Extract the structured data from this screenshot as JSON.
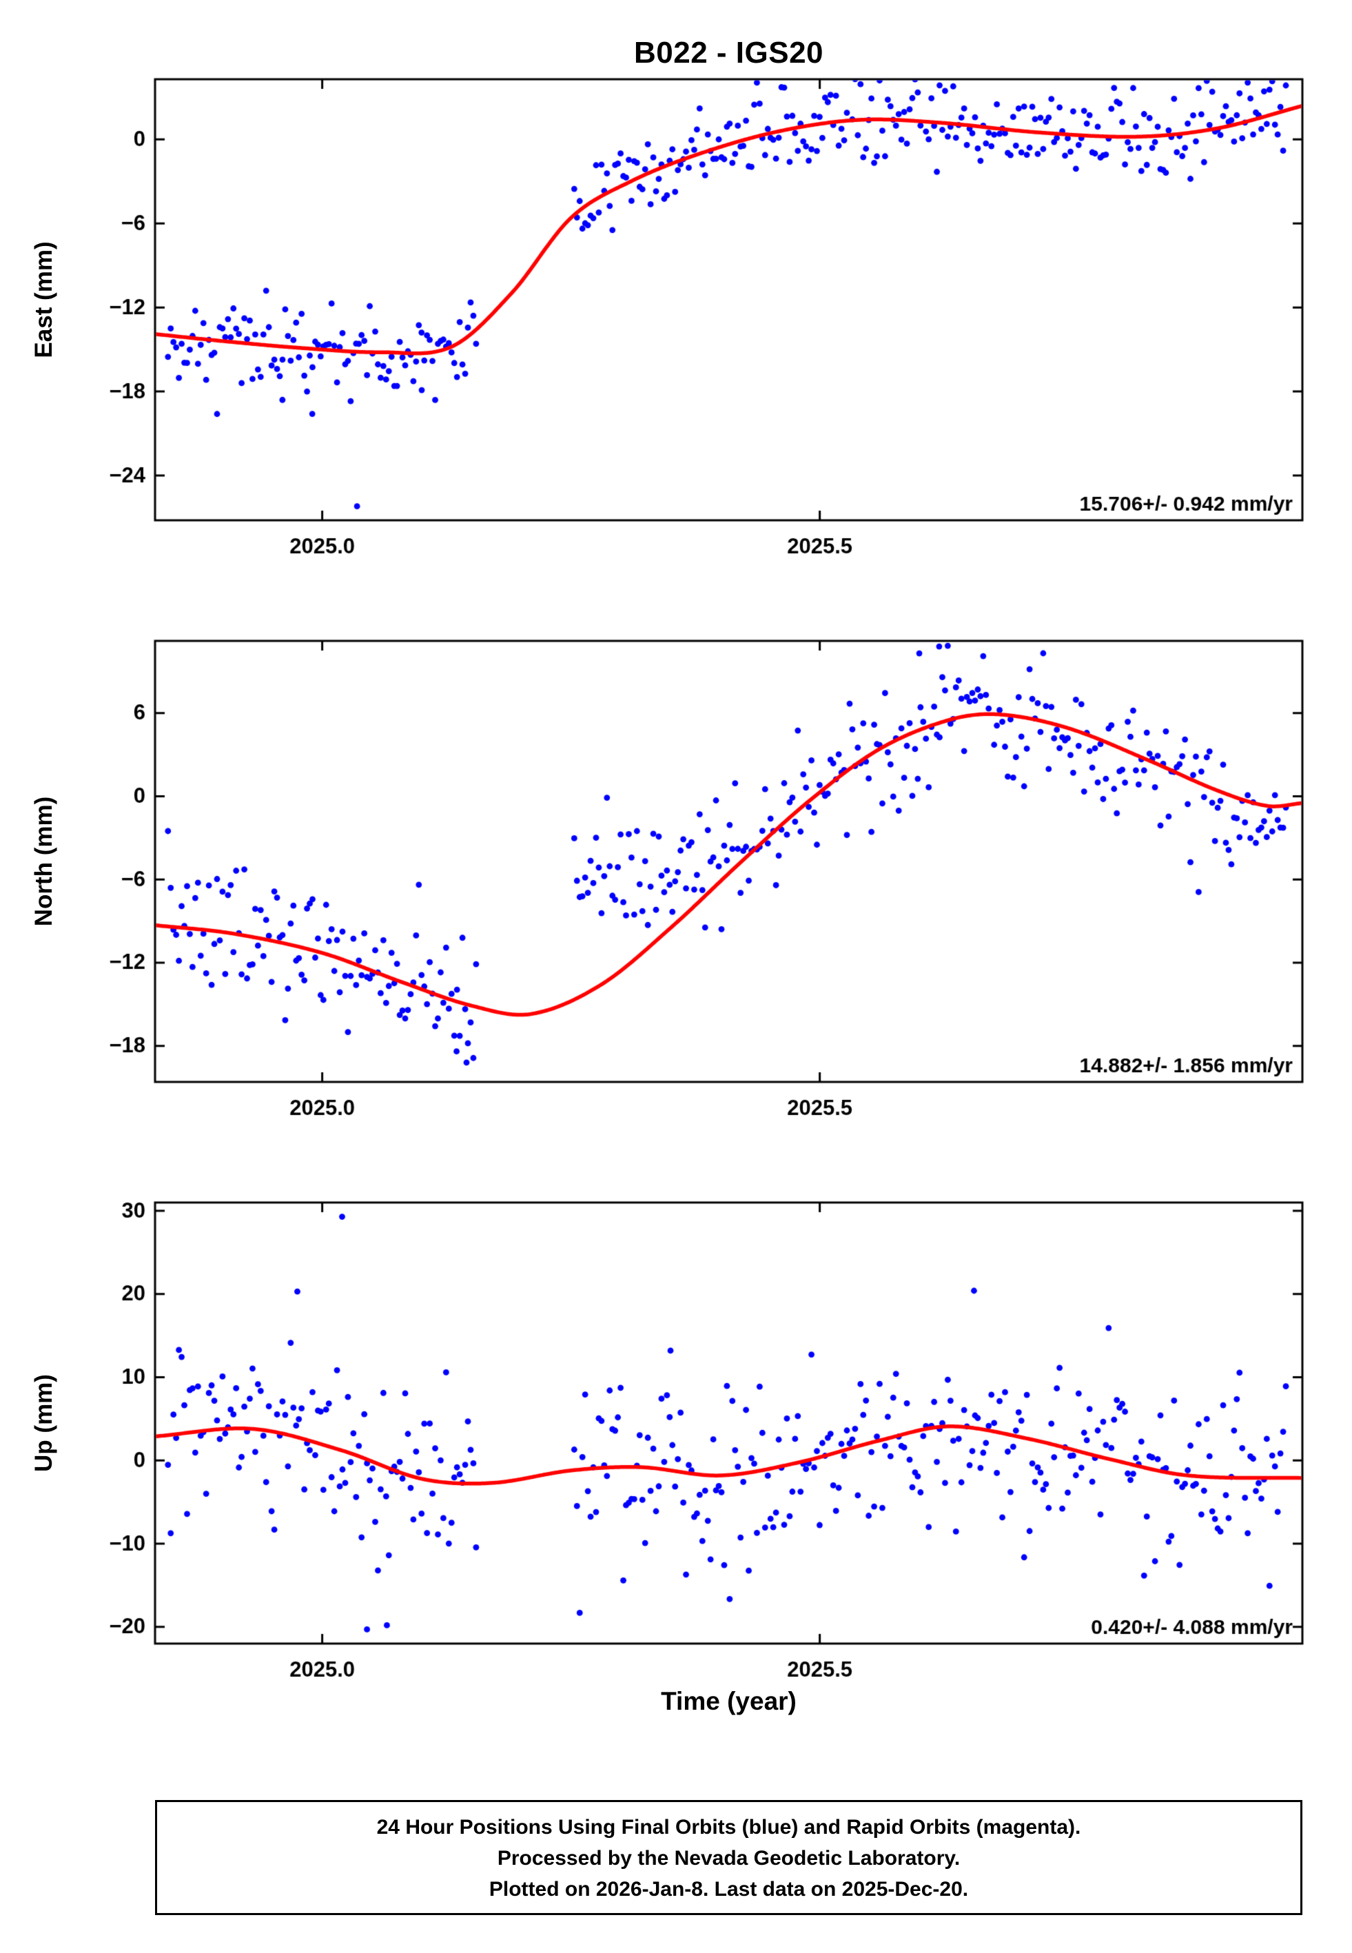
{
  "page": {
    "title": "B022 - IGS20",
    "xlabel": "Time (year)"
  },
  "footer": {
    "lines": [
      "24 Hour Positions Using Final Orbits (blue) and Rapid Orbits (magenta).",
      "Processed by the Nevada Geodetic Laboratory.",
      "Plotted on 2026-Jan-8. Last data on 2025-Dec-20."
    ]
  },
  "style": {
    "point_color": "#0000ff",
    "fit_color": "#ff0000",
    "frame_color": "#000000",
    "point_radius": 4.4,
    "fit_width": 5.5
  },
  "chart_data": [
    {
      "type": "scatter",
      "component": "east",
      "ylabel": "East (mm)",
      "annotation": "15.706+/- 0.942 mm/yr",
      "rate_mm_per_yr": 15.706,
      "rate_sigma_mm_per_yr": 0.942,
      "xlim": [
        2024.832,
        2025.985
      ],
      "ylim": [
        -27.2,
        4.3
      ],
      "xticks": [
        2025.0,
        2025.5
      ],
      "xtick_labels": [
        "2025.0",
        "2025.5"
      ],
      "yticks": [
        0,
        -6,
        -12,
        -18,
        -24
      ],
      "ytick_labels": [
        "0",
        "−6",
        "−12",
        "−18",
        "−24"
      ],
      "fit_curve_knots": [
        [
          2024.832,
          -13.9
        ],
        [
          2024.9,
          -14.4
        ],
        [
          2024.98,
          -14.9
        ],
        [
          2025.06,
          -15.2
        ],
        [
          2025.13,
          -14.8
        ],
        [
          2025.19,
          -11.0
        ],
        [
          2025.25,
          -5.6
        ],
        [
          2025.31,
          -3.0
        ],
        [
          2025.38,
          -1.0
        ],
        [
          2025.46,
          0.6
        ],
        [
          2025.54,
          1.4
        ],
        [
          2025.62,
          1.2
        ],
        [
          2025.72,
          0.5
        ],
        [
          2025.82,
          0.2
        ],
        [
          2025.9,
          0.8
        ],
        [
          2025.985,
          2.4
        ]
      ],
      "points": {
        "seed": 42,
        "sd": 1.6,
        "step": 0.00274,
        "t_start": 2024.845,
        "t_end": 2025.969,
        "gap": [
          2025.155,
          2025.252
        ]
      },
      "outlier_points": [
        [
          2025.035,
          -26.2
        ],
        [
          2024.99,
          -19.6
        ],
        [
          2024.96,
          -18.6
        ],
        [
          2025.1,
          -17.9
        ]
      ]
    },
    {
      "type": "scatter",
      "component": "north",
      "ylabel": "North (mm)",
      "annotation": "14.882+/- 1.856 mm/yr",
      "rate_mm_per_yr": 14.882,
      "rate_sigma_mm_per_yr": 1.856,
      "xlim": [
        2024.832,
        2025.985
      ],
      "ylim": [
        -20.6,
        11.2
      ],
      "xticks": [
        2025.0,
        2025.5
      ],
      "xtick_labels": [
        "2025.0",
        "2025.5"
      ],
      "yticks": [
        6,
        0,
        -6,
        -12,
        -18
      ],
      "ytick_labels": [
        "6",
        "0",
        "−6",
        "−12",
        "−18"
      ],
      "fit_curve_knots": [
        [
          2024.832,
          -9.3
        ],
        [
          2024.91,
          -9.9
        ],
        [
          2025.0,
          -11.3
        ],
        [
          2025.08,
          -13.4
        ],
        [
          2025.15,
          -15.1
        ],
        [
          2025.21,
          -15.7
        ],
        [
          2025.28,
          -13.6
        ],
        [
          2025.35,
          -9.5
        ],
        [
          2025.42,
          -4.8
        ],
        [
          2025.49,
          -0.3
        ],
        [
          2025.56,
          3.4
        ],
        [
          2025.63,
          5.5
        ],
        [
          2025.68,
          5.9
        ],
        [
          2025.75,
          4.9
        ],
        [
          2025.83,
          2.6
        ],
        [
          2025.9,
          0.4
        ],
        [
          2025.95,
          -0.7
        ],
        [
          2025.985,
          -0.5
        ]
      ],
      "mean_curve_knots": [
        [
          2024.832,
          -9.3
        ],
        [
          2024.91,
          -10.0
        ],
        [
          2025.0,
          -11.3
        ],
        [
          2025.08,
          -13.4
        ],
        [
          2025.155,
          -15.0
        ],
        [
          2025.2,
          -10.0
        ],
        [
          2025.252,
          -5.8
        ],
        [
          2025.31,
          -5.9
        ],
        [
          2025.38,
          -4.6
        ],
        [
          2025.45,
          -1.8
        ],
        [
          2025.52,
          1.6
        ],
        [
          2025.59,
          4.6
        ],
        [
          2025.65,
          5.9
        ],
        [
          2025.7,
          6.0
        ],
        [
          2025.76,
          4.7
        ],
        [
          2025.83,
          2.6
        ],
        [
          2025.9,
          0.4
        ],
        [
          2025.95,
          -0.7
        ],
        [
          2025.985,
          -0.5
        ]
      ],
      "points": {
        "seed": 7,
        "sd": 2.5,
        "step": 0.00274,
        "t_start": 2024.845,
        "t_end": 2025.969,
        "gap": [
          2025.155,
          2025.252
        ]
      },
      "outlier_points": [
        [
          2025.145,
          -19.2
        ],
        [
          2025.135,
          -18.4
        ],
        [
          2025.62,
          10.8
        ],
        [
          2025.6,
          10.3
        ]
      ]
    },
    {
      "type": "scatter",
      "component": "up",
      "ylabel": "Up (mm)",
      "annotation": "0.420+/- 4.088 mm/yr",
      "rate_mm_per_yr": 0.42,
      "rate_sigma_mm_per_yr": 4.088,
      "xlim": [
        2024.832,
        2025.985
      ],
      "ylim": [
        -22,
        31
      ],
      "xticks": [
        2025.0,
        2025.5
      ],
      "xtick_labels": [
        "2025.0",
        "2025.5"
      ],
      "yticks": [
        30,
        20,
        10,
        0,
        -10,
        -20
      ],
      "ytick_labels": [
        "30",
        "20",
        "10",
        "0",
        "−10",
        "−20"
      ],
      "fit_curve_knots": [
        [
          2024.832,
          2.9
        ],
        [
          2024.93,
          3.8
        ],
        [
          2025.02,
          1.2
        ],
        [
          2025.1,
          -2.2
        ],
        [
          2025.17,
          -2.7
        ],
        [
          2025.25,
          -1.2
        ],
        [
          2025.32,
          -0.8
        ],
        [
          2025.4,
          -1.8
        ],
        [
          2025.48,
          -0.2
        ],
        [
          2025.56,
          2.4
        ],
        [
          2025.63,
          4.1
        ],
        [
          2025.71,
          2.6
        ],
        [
          2025.79,
          0.2
        ],
        [
          2025.87,
          -1.8
        ],
        [
          2025.985,
          -2.1
        ]
      ],
      "points": {
        "seed": 1234,
        "sd": 5.4,
        "step": 0.00274,
        "t_start": 2024.845,
        "t_end": 2025.969,
        "gap": [
          2025.155,
          2025.252
        ]
      },
      "outlier_points": [
        [
          2025.02,
          29.3
        ],
        [
          2024.975,
          20.3
        ],
        [
          2025.045,
          -20.3
        ],
        [
          2025.065,
          -19.8
        ],
        [
          2025.655,
          20.4
        ],
        [
          2025.35,
          13.2
        ]
      ]
    }
  ]
}
